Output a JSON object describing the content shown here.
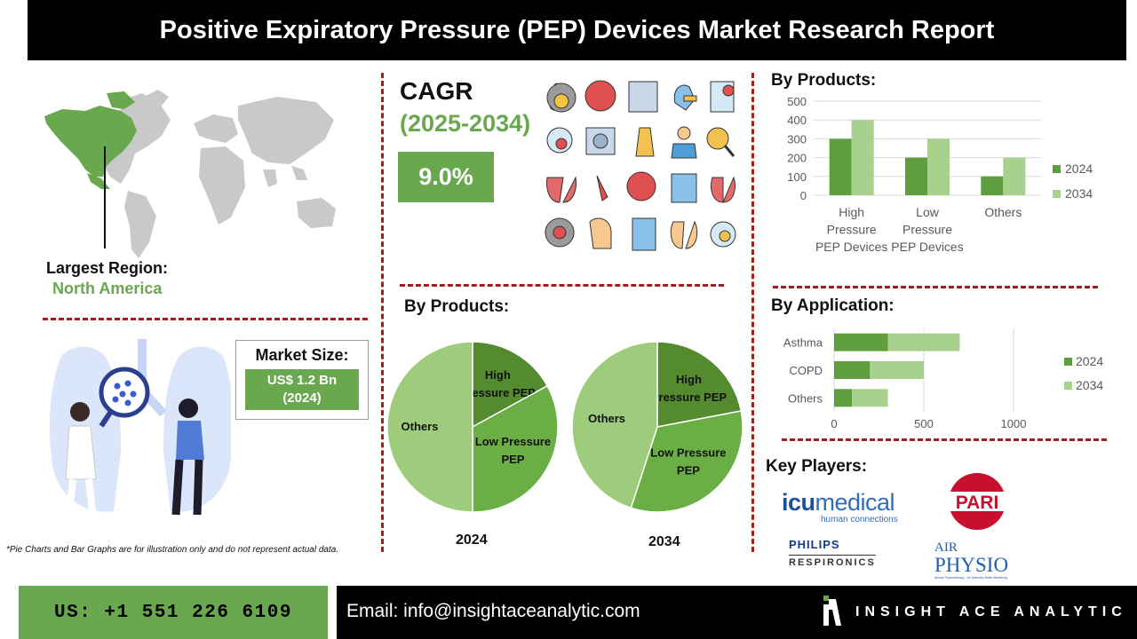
{
  "title": "Positive Expiratory Pressure (PEP) Devices Market Research Report",
  "region": {
    "label": "Largest Region:",
    "value": "North America"
  },
  "market_size": {
    "label": "Market Size:",
    "value_line1": "US$ 1.2 Bn",
    "value_line2": "(2024)"
  },
  "cagr": {
    "label": "CAGR",
    "years": "(2025-2034)",
    "value": "9.0%"
  },
  "sections": {
    "by_products_bar": "By Products:",
    "by_products_pie": "By Products:",
    "by_application": "By Application:",
    "key_players": "Key Players:"
  },
  "players": {
    "icu_main": "icumedical",
    "icu_icu": "icu",
    "icu_medical": "medical",
    "icu_tag": "human connections",
    "pari": "PARI",
    "philips": "PHILIPS",
    "respironics": "RESPIRONICS",
    "airphysio_air": "AIR",
    "airphysio_physio": "PHYSIO",
    "airphysio_tag": "Airway Physiotherapy - for Naturally Better Breathing"
  },
  "disclaimer": "*Pie Charts and Bar Graphs are for illustration only and do not represent actual data.",
  "footer": {
    "phone": "US: +1 551 226 6109",
    "email": "Email: info@insightaceanalytic.com",
    "brand": "INSIGHT ACE ANALYTIC"
  },
  "colors": {
    "dark_green": "#5e9e3f",
    "light_green": "#a9d18e",
    "accent_green": "#6aa84f",
    "pie_dark": "#558b2f",
    "pie_mid": "#6aae45",
    "pie_light": "#9ccc7c",
    "divider": "#a51d24"
  },
  "chart_data": [
    {
      "type": "bar",
      "title": "By Products:",
      "categories": [
        "High Pressure PEP Devices",
        "Low Pressure PEP Devices",
        "Others"
      ],
      "category_lines": [
        [
          "High",
          "Pressure",
          "PEP Devices"
        ],
        [
          "Low",
          "Pressure",
          "PEP Devices"
        ],
        [
          "Others"
        ]
      ],
      "series": [
        {
          "name": "2024",
          "values": [
            300,
            200,
            100
          ]
        },
        {
          "name": "2034",
          "values": [
            400,
            300,
            200
          ]
        }
      ],
      "ylim": [
        0,
        500
      ],
      "yticks": [
        0,
        100,
        200,
        300,
        400,
        500
      ],
      "grid": true,
      "legend": "right"
    },
    {
      "type": "bar",
      "orientation": "horizontal",
      "stacked": true,
      "title": "By Application:",
      "categories": [
        "Asthma",
        "COPD",
        "Others"
      ],
      "series": [
        {
          "name": "2024",
          "values": [
            300,
            200,
            100
          ]
        },
        {
          "name": "2034",
          "values": [
            400,
            300,
            200
          ]
        }
      ],
      "xlim": [
        0,
        1000
      ],
      "xticks": [
        0,
        500,
        1000
      ],
      "grid": true,
      "legend": "right"
    },
    {
      "type": "pie",
      "title": "2024",
      "labels": [
        "High Pressure PEP",
        "Low Pressure PEP",
        "Others"
      ],
      "values": [
        17,
        33,
        50
      ]
    },
    {
      "type": "pie",
      "title": "2034",
      "labels": [
        "High Pressure PEP",
        "Low Pressure PEP",
        "Others"
      ],
      "values": [
        22,
        33,
        45
      ]
    }
  ]
}
